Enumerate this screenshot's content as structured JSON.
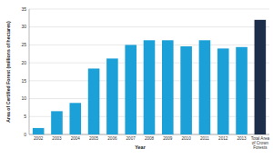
{
  "chart_data": {
    "type": "bar",
    "x_label": "Year",
    "y_label": "Area of Certified Forest (millions of hectares)",
    "categories": [
      "2002",
      "2003",
      "2004",
      "2005",
      "2006",
      "2007",
      "2008",
      "2009",
      "2010",
      "2011",
      "2012",
      "2013",
      "Total Area of Crown Forests"
    ],
    "values": [
      1.8,
      6.5,
      8.8,
      18.4,
      21.2,
      25,
      26.3,
      26.3,
      24.6,
      26.3,
      24,
      24.4,
      32
    ],
    "colors": [
      "#1ba1d8",
      "#1ba1d8",
      "#1ba1d8",
      "#1ba1d8",
      "#1ba1d8",
      "#1ba1d8",
      "#1ba1d8",
      "#1ba1d8",
      "#1ba1d8",
      "#1ba1d8",
      "#1ba1d8",
      "#1ba1d8",
      "#1c2e4a"
    ],
    "ylim": [
      0,
      35
    ],
    "yticks": [
      0,
      5,
      10,
      15,
      20,
      25,
      30,
      35
    ],
    "grid": true
  }
}
